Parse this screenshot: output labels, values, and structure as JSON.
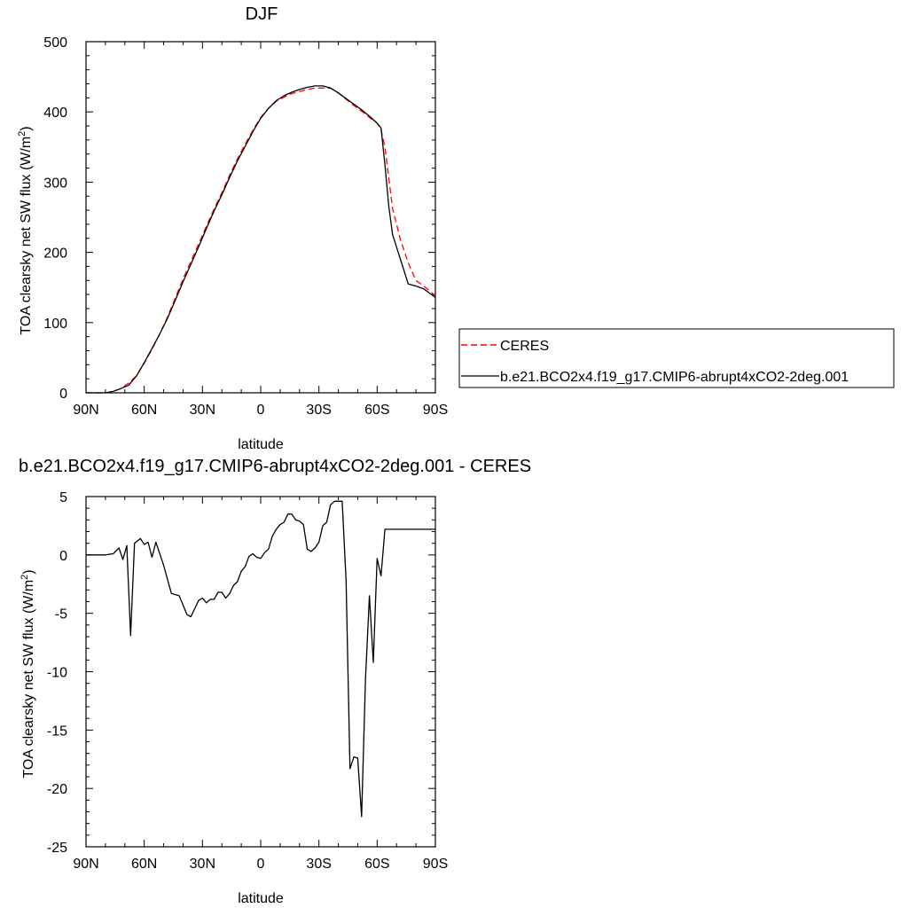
{
  "chart_data": [
    {
      "type": "line",
      "title": "DJF",
      "xlabel": "latitude",
      "ylabel": "TOA clearsky net SW flux (W/m",
      "ylabel_sup": "2",
      "ylabel_tail": ")",
      "xlim": [
        -90,
        90
      ],
      "ylim": [
        0,
        500
      ],
      "xticks": [
        -90,
        -60,
        -30,
        0,
        30,
        60,
        90
      ],
      "xtick_labels": [
        "90N",
        "60N",
        "30N",
        "0",
        "30S",
        "60S",
        "90S"
      ],
      "yticks": [
        0,
        100,
        200,
        300,
        400,
        500
      ],
      "ytick_labels": [
        "0",
        "100",
        "200",
        "300",
        "400",
        "500"
      ],
      "grid": false,
      "legend_placement": "right",
      "series": [
        {
          "name": "CERES",
          "color": "#ff0000",
          "dash": "dashed",
          "x": [
            -90,
            -80,
            -76,
            -72,
            -68,
            -64,
            -60,
            -56,
            -52,
            -48,
            -44,
            -40,
            -36,
            -32,
            -28,
            -24,
            -20,
            -16,
            -12,
            -8,
            -4,
            0,
            4,
            8,
            12,
            16,
            20,
            24,
            28,
            32,
            36,
            40,
            44,
            48,
            52,
            56,
            60,
            62,
            64,
            66,
            68,
            72,
            76,
            80,
            84,
            88,
            90
          ],
          "y": [
            0,
            0,
            2,
            6,
            14,
            24,
            42,
            62,
            84,
            108,
            135,
            162,
            187,
            212,
            237,
            262,
            285,
            310,
            333,
            354,
            374,
            392,
            405,
            415,
            421,
            426,
            429,
            432,
            434,
            434,
            434,
            427,
            418,
            409,
            401,
            392,
            384,
            375,
            350,
            305,
            262,
            218,
            185,
            160,
            152,
            143,
            138
          ]
        },
        {
          "name": "b.e21.BCO2x4.f19_g17.CMIP6-abrupt4xCO2-2deg.001",
          "color": "#000000",
          "dash": "solid",
          "x": [
            -90,
            -80,
            -76,
            -72,
            -68,
            -64,
            -60,
            -56,
            -52,
            -48,
            -44,
            -40,
            -36,
            -32,
            -28,
            -24,
            -20,
            -16,
            -12,
            -8,
            -4,
            0,
            4,
            8,
            12,
            16,
            20,
            24,
            28,
            32,
            36,
            40,
            44,
            48,
            52,
            56,
            60,
            62,
            64,
            66,
            68,
            72,
            76,
            80,
            84,
            88,
            90
          ],
          "y": [
            0,
            0,
            2,
            6,
            11,
            24,
            43,
            63,
            84,
            106,
            132,
            158,
            183,
            208,
            234,
            259,
            282,
            307,
            330,
            351,
            372,
            391,
            405,
            416,
            423,
            428,
            432,
            435,
            437,
            437,
            434,
            427,
            419,
            411,
            403,
            394,
            384,
            377,
            325,
            265,
            225,
            190,
            155,
            152,
            148,
            140,
            136
          ]
        }
      ]
    },
    {
      "type": "line",
      "title": "b.e21.BCO2x4.f19_g17.CMIP6-abrupt4xCO2-2deg.001 - CERES",
      "xlabel": "latitude",
      "ylabel": "TOA clearsky net SW flux (W/m",
      "ylabel_sup": "2",
      "ylabel_tail": ")",
      "xlim": [
        -90,
        90
      ],
      "ylim": [
        -25,
        5
      ],
      "xticks": [
        -90,
        -60,
        -30,
        0,
        30,
        60,
        90
      ],
      "xtick_labels": [
        "90N",
        "60N",
        "30N",
        "0",
        "30S",
        "60S",
        "90S"
      ],
      "yticks": [
        -25,
        -20,
        -15,
        -10,
        -5,
        0,
        5
      ],
      "ytick_labels": [
        "-25",
        "-20",
        "-15",
        "-10",
        "-5",
        "0",
        "5"
      ],
      "grid": false,
      "series": [
        {
          "color": "#000000",
          "dash": "solid",
          "x": [
            -90,
            -84,
            -80,
            -76,
            -73,
            -71,
            -69,
            -67,
            -65,
            -62,
            -60,
            -58,
            -56,
            -54,
            -50,
            -46,
            -42,
            -38,
            -36,
            -34,
            -32,
            -30,
            -28,
            -26,
            -24,
            -22,
            -20,
            -18,
            -16,
            -14,
            -12,
            -10,
            -8,
            -6,
            -4,
            -2,
            0,
            2,
            4,
            6,
            8,
            10,
            12,
            14,
            16,
            18,
            20,
            22,
            24,
            26,
            28,
            30,
            32,
            34,
            36,
            38,
            40,
            42,
            44,
            46,
            48,
            50,
            52,
            54,
            56,
            58,
            60,
            62,
            64,
            66,
            68,
            70,
            72,
            74,
            76,
            78,
            80,
            82,
            84,
            86,
            88,
            90
          ],
          "y": [
            0,
            0,
            0,
            0.1,
            0.6,
            -0.4,
            0.8,
            -6.9,
            1.0,
            1.4,
            0.9,
            1.1,
            -0.2,
            1.1,
            -0.9,
            -3.3,
            -3.5,
            -5.1,
            -5.3,
            -4.6,
            -3.9,
            -3.7,
            -4.1,
            -3.8,
            -3.8,
            -3.2,
            -3.2,
            -3.7,
            -3.3,
            -2.6,
            -2.3,
            -1.4,
            -1.0,
            -0.1,
            0.1,
            -0.2,
            -0.3,
            0.2,
            0.5,
            1.6,
            2.2,
            2.6,
            2.8,
            3.5,
            3.5,
            3.0,
            2.9,
            2.6,
            0.5,
            0.3,
            0.6,
            1.1,
            2.5,
            2.8,
            4.3,
            4.6,
            4.6,
            4.6,
            -2.2,
            -18.3,
            -17.3,
            -17.4,
            -22.4,
            -10.6,
            -3.5,
            -9.2,
            -0.3,
            -1.8,
            2.2,
            2.2,
            2.2,
            2.2,
            2.2,
            2.2,
            2.2,
            2.2,
            2.2,
            2.2,
            2.2,
            2.2,
            2.2,
            2.2
          ]
        }
      ]
    }
  ]
}
